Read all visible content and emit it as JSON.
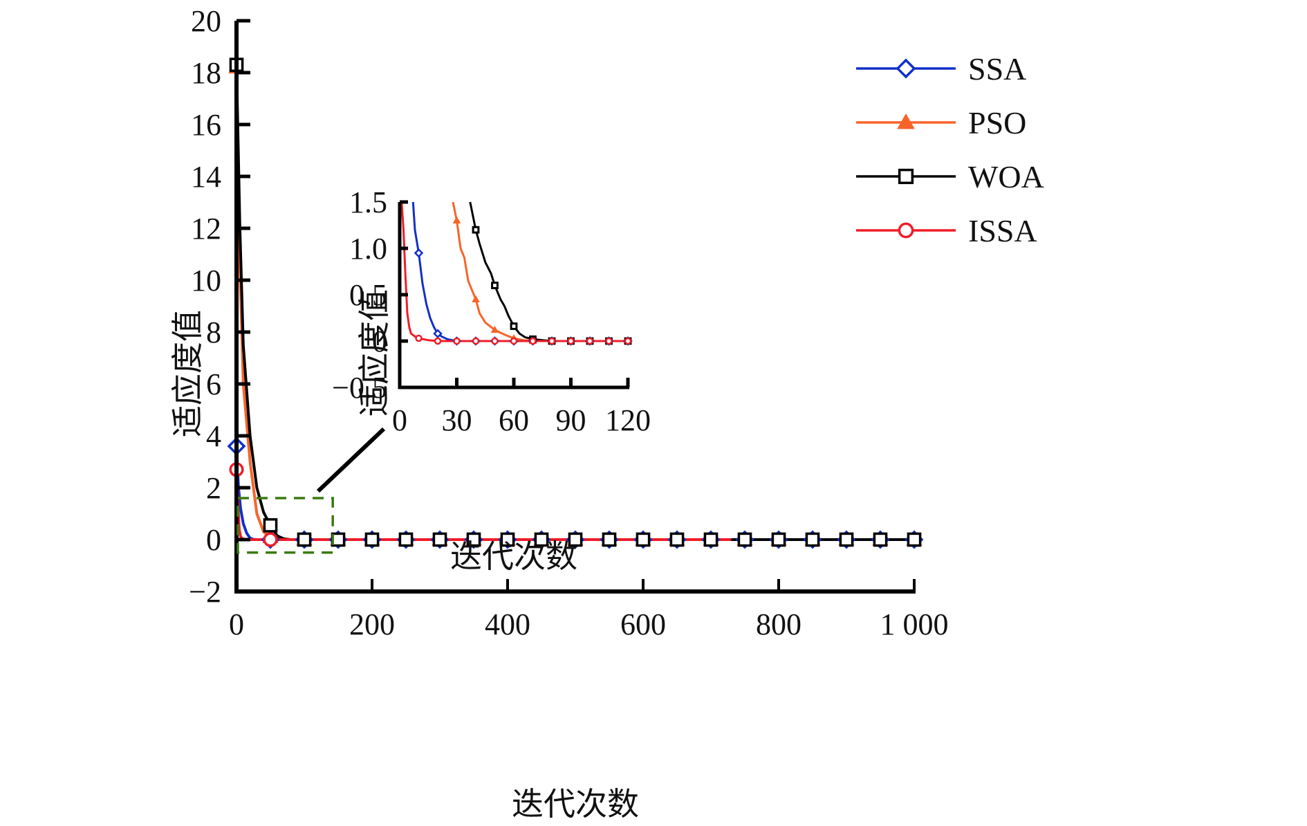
{
  "chart_data": {
    "type": "line",
    "title": "",
    "xlabel": "迭代次数",
    "ylabel": "适应度值",
    "xlim": [
      0,
      1000
    ],
    "ylim": [
      -2,
      20
    ],
    "xticks": [
      0,
      200,
      400,
      600,
      800,
      1000
    ],
    "xtick_labels": [
      "0",
      "200",
      "400",
      "600",
      "800",
      "1 000"
    ],
    "yticks": [
      -2,
      0,
      2,
      4,
      6,
      8,
      10,
      12,
      14,
      16,
      18,
      20
    ],
    "ytick_labels": [
      "−2",
      "0",
      "2",
      "4",
      "6",
      "8",
      "10",
      "12",
      "14",
      "16",
      "18",
      "20"
    ],
    "grid": false,
    "legend": {
      "position": "top-right",
      "entries": [
        "SSA",
        "PSO",
        "WOA",
        "ISSA"
      ]
    },
    "series": [
      {
        "name": "SSA",
        "color": "#1030c8",
        "marker": "diamond-open",
        "x": [
          0,
          3,
          6,
          10,
          15,
          20,
          25,
          30,
          50,
          100,
          1000
        ],
        "y": [
          3.6,
          2.0,
          1.2,
          0.62,
          0.25,
          0.06,
          0.01,
          0.0,
          0.0,
          0.0,
          0.0
        ],
        "marker_x": [
          0,
          50,
          100,
          150,
          200,
          250,
          300,
          350,
          400,
          450,
          500,
          550,
          600,
          650,
          700,
          750,
          800,
          850,
          900,
          950,
          1000
        ]
      },
      {
        "name": "PSO",
        "color": "#f86428",
        "marker": "triangle-filled",
        "x": [
          0,
          5,
          10,
          20,
          30,
          40,
          50,
          60,
          70,
          100,
          1000
        ],
        "y": [
          18.2,
          10.5,
          6.0,
          3.0,
          1.0,
          0.3,
          0.1,
          0.02,
          0.0,
          0.0,
          0.0
        ],
        "marker_x": [
          0,
          50,
          100,
          150,
          200,
          250,
          300,
          350,
          400,
          450,
          500,
          550,
          600,
          650,
          700,
          750,
          800,
          850,
          900,
          950,
          1000
        ]
      },
      {
        "name": "WOA",
        "color": "#000000",
        "marker": "square-open",
        "x": [
          0,
          5,
          10,
          20,
          30,
          40,
          50,
          60,
          70,
          80,
          100,
          1000
        ],
        "y": [
          18.3,
          12.0,
          7.5,
          4.0,
          2.0,
          1.05,
          0.55,
          0.15,
          0.03,
          0.0,
          0.0,
          0.0
        ],
        "marker_x": [
          0,
          50,
          100,
          150,
          200,
          250,
          300,
          350,
          400,
          450,
          500,
          550,
          600,
          650,
          700,
          750,
          800,
          850,
          900,
          950,
          1000
        ]
      },
      {
        "name": "ISSA",
        "color": "#f01c28",
        "marker": "circle-open",
        "x": [
          0,
          2,
          4,
          6,
          8,
          10,
          15,
          20,
          1000
        ],
        "y": [
          2.7,
          1.4,
          0.4,
          0.12,
          0.05,
          0.02,
          0.005,
          0.0,
          0.0
        ],
        "marker_x": [
          0,
          50
        ]
      }
    ],
    "zoom_box": {
      "x": [
        0,
        140
      ],
      "y": [
        -0.5,
        1.6
      ],
      "color": "#3a7a10",
      "style": "dashed"
    },
    "inset": {
      "xlabel": "迭代次数",
      "ylabel": "适应度值",
      "xlim": [
        0,
        120
      ],
      "ylim": [
        -0.5,
        1.5
      ],
      "xticks": [
        0,
        30,
        60,
        90,
        120
      ],
      "xtick_labels": [
        "0",
        "30",
        "60",
        "90",
        "120"
      ],
      "yticks": [
        -0.5,
        0,
        0.5,
        1.0,
        1.5
      ],
      "ytick_labels": [
        "−0.5",
        "0",
        "0.5",
        "1.0",
        "1.5"
      ],
      "series": [
        {
          "name": "SSA",
          "color": "#1030c8",
          "marker": "diamond-open",
          "x": [
            7,
            8,
            10,
            12,
            14,
            16,
            18,
            20,
            22,
            25,
            30,
            40,
            120
          ],
          "y": [
            1.5,
            1.2,
            0.95,
            0.62,
            0.4,
            0.25,
            0.15,
            0.08,
            0.05,
            0.02,
            0.0,
            0.0,
            0.0
          ],
          "marker_x": [
            10,
            20,
            30,
            40,
            50,
            60,
            70,
            80,
            90,
            100,
            110,
            120
          ]
        },
        {
          "name": "PSO",
          "color": "#f86428",
          "marker": "triangle-filled",
          "x": [
            28,
            30,
            32,
            34,
            36,
            40,
            42,
            45,
            50,
            55,
            60,
            65,
            70,
            120
          ],
          "y": [
            1.5,
            1.3,
            1.0,
            0.9,
            0.65,
            0.45,
            0.3,
            0.2,
            0.12,
            0.07,
            0.03,
            0.01,
            0.0,
            0.0
          ],
          "marker_x": [
            30,
            40,
            50,
            60,
            70,
            80,
            90,
            100,
            110,
            120
          ]
        },
        {
          "name": "WOA",
          "color": "#000000",
          "marker": "square-open",
          "x": [
            37,
            40,
            42,
            45,
            48,
            50,
            53,
            55,
            57,
            60,
            63,
            66,
            70,
            75,
            80,
            120
          ],
          "y": [
            1.5,
            1.2,
            1.05,
            0.85,
            0.73,
            0.6,
            0.45,
            0.38,
            0.28,
            0.16,
            0.08,
            0.04,
            0.02,
            0.01,
            0.0,
            0.0
          ],
          "marker_x": [
            40,
            50,
            60,
            70,
            80,
            90,
            100,
            110,
            120
          ]
        },
        {
          "name": "ISSA",
          "color": "#f01c28",
          "marker": "circle-open",
          "x": [
            1,
            2,
            3,
            4,
            5,
            6,
            8,
            10,
            15,
            20,
            120
          ],
          "y": [
            1.5,
            1.2,
            0.7,
            0.3,
            0.15,
            0.08,
            0.05,
            0.03,
            0.01,
            0.0,
            0.0
          ],
          "marker_x": [
            10,
            20,
            30,
            40,
            50,
            60,
            70,
            80,
            90,
            100,
            110,
            120
          ]
        }
      ]
    }
  }
}
